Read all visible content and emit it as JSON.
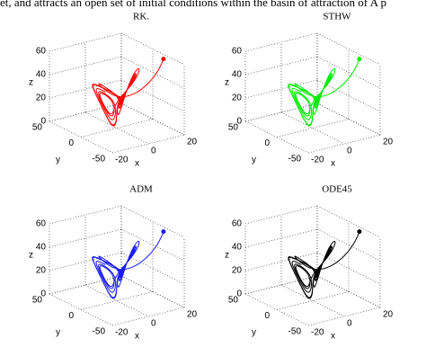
{
  "header": {
    "text": "et, and attracts an open set of initial conditions within the basin of attraction of A p"
  },
  "panels": [
    {
      "title": "RK.",
      "color": "#ff0000",
      "z_ticks": [
        "60",
        "40",
        "20",
        "0"
      ],
      "y_ticks": [
        "50",
        "0",
        "-50"
      ],
      "x_ticks": [
        "-20",
        "0",
        "20"
      ],
      "z_label": "z",
      "y_label": "y",
      "x_label": "x"
    },
    {
      "title": "STHW",
      "color": "#00ee00",
      "z_ticks": [
        "60",
        "40",
        "20",
        "0"
      ],
      "y_ticks": [
        "50",
        "0",
        "-50"
      ],
      "x_ticks": [
        "-20",
        "0",
        "20"
      ],
      "z_label": "z",
      "y_label": "y",
      "x_label": "x"
    },
    {
      "title": "ADM",
      "color": "#1a1aff",
      "z_ticks": [
        "60",
        "40",
        "20",
        "0"
      ],
      "y_ticks": [
        "50",
        "0",
        "-50"
      ],
      "x_ticks": [
        "-20",
        "0",
        "20"
      ],
      "z_label": "z",
      "y_label": "y",
      "x_label": "x"
    },
    {
      "title": "ODE45",
      "color": "#000000",
      "z_ticks": [
        "60",
        "40",
        "20",
        "0"
      ],
      "y_ticks": [
        "50",
        "0",
        "-50"
      ],
      "x_ticks": [
        "-20",
        "0",
        "20"
      ],
      "z_label": "z",
      "y_label": "y",
      "x_label": "x"
    }
  ]
}
